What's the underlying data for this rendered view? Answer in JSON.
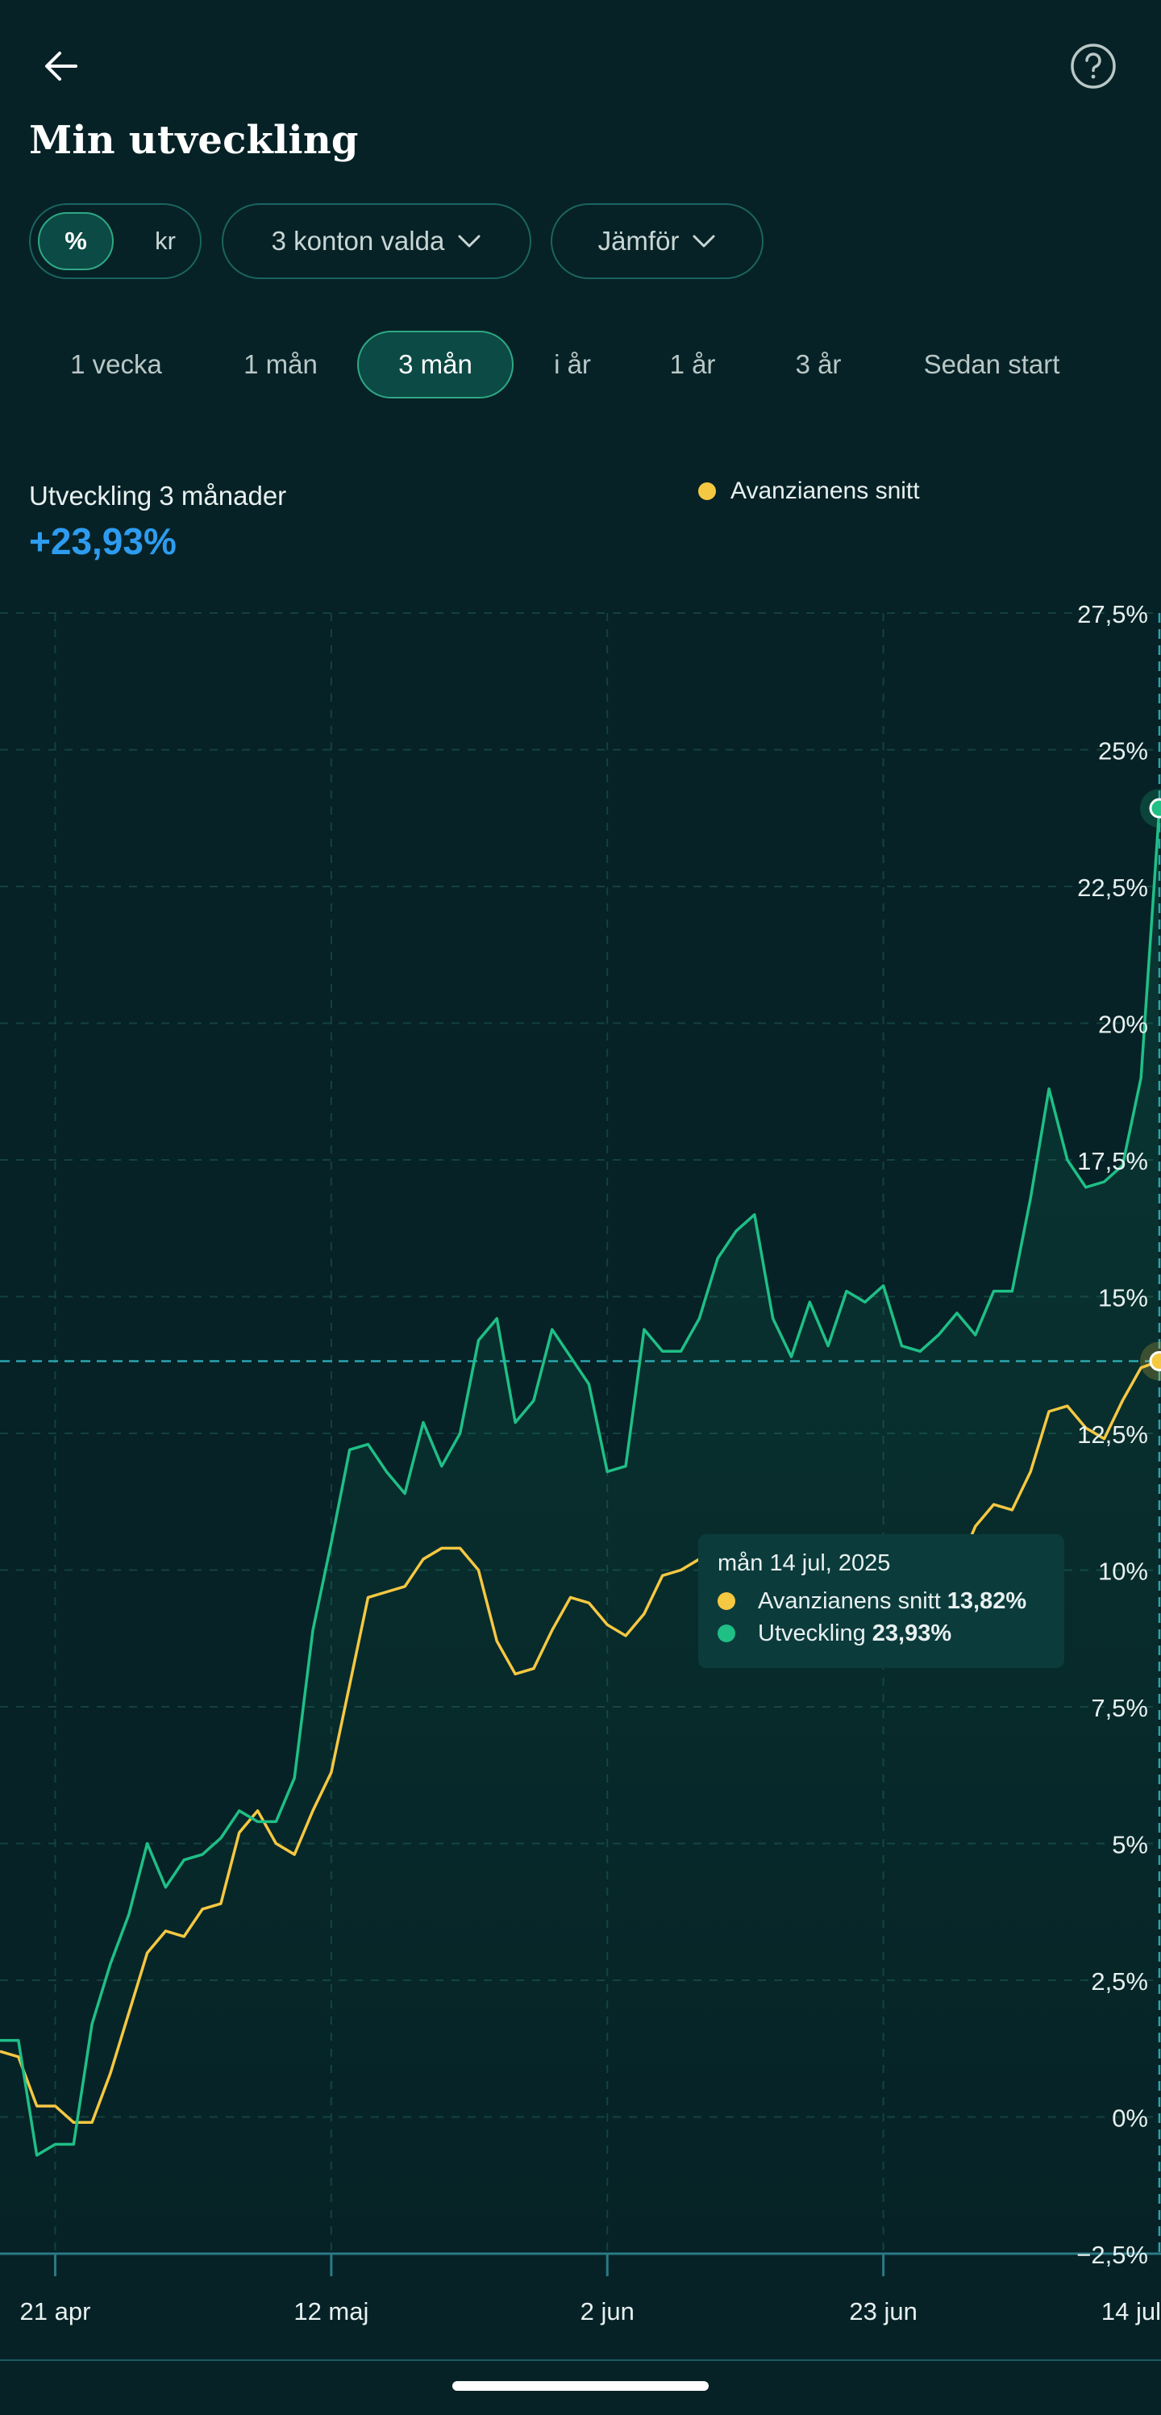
{
  "header": {
    "back_icon": "arrow-left-icon",
    "help_icon": "question-circle-icon",
    "title": "Min utveckling"
  },
  "filters": {
    "unit_percent": "%",
    "unit_kr": "kr",
    "unit_selected": "%",
    "accounts_label": "3 konton valda",
    "compare_label": "Jämför"
  },
  "range_tabs": [
    "1 vecka",
    "1 mån",
    "3 mån",
    "i år",
    "1 år",
    "3 år",
    "Sedan start"
  ],
  "range_selected": "3 mån",
  "summary": {
    "label": "Utveckling 3 månader",
    "value": "+23,93%"
  },
  "legend": {
    "comparison_label": "Avanzianens snitt"
  },
  "tooltip": {
    "date": "mån 14 jul, 2025",
    "rows": [
      {
        "label": "Avanzianens snitt",
        "value": "13,82%"
      },
      {
        "label": "Utveckling",
        "value": "23,93%"
      }
    ]
  },
  "colors": {
    "background": "#062226",
    "utveckling": "#1fbf86",
    "avanzianens_snitt": "#f5c842",
    "accent_value": "#2d9cf0"
  },
  "chart_data": {
    "type": "line",
    "ylim": [
      -2.5,
      27.5
    ],
    "y_ticks": [
      27.5,
      25,
      22.5,
      20,
      17.5,
      15,
      12.5,
      10,
      7.5,
      5,
      2.5,
      0,
      -2.5
    ],
    "y_tick_labels": [
      "27,5%",
      "25%",
      "22,5%",
      "20%",
      "17,5%",
      "15%",
      "12,5%",
      "10%",
      "7,5%",
      "5%",
      "2,5%",
      "0%",
      "−2,5%"
    ],
    "x_tick_labels": [
      "21 apr",
      "12 maj",
      "2 jun",
      "23 jun",
      "14 jul"
    ],
    "x_ticks_index": [
      3,
      18,
      33,
      48,
      63
    ],
    "x_count": 64,
    "grid": true,
    "crosshair_value": 13.82,
    "series": [
      {
        "name": "Utveckling",
        "color": "#1fbf86",
        "values": [
          1.4,
          1.4,
          -0.7,
          -0.5,
          -0.5,
          1.7,
          2.8,
          3.7,
          5.0,
          4.2,
          4.7,
          4.8,
          5.1,
          5.6,
          5.4,
          5.4,
          6.2,
          8.9,
          10.5,
          12.2,
          12.3,
          11.8,
          11.4,
          12.7,
          11.9,
          12.5,
          14.2,
          14.6,
          12.7,
          13.1,
          14.4,
          13.9,
          13.4,
          11.8,
          11.9,
          14.4,
          14.0,
          14.0,
          14.6,
          15.7,
          16.2,
          16.5,
          14.6,
          13.9,
          14.9,
          14.1,
          15.1,
          14.9,
          15.2,
          14.1,
          14.0,
          14.3,
          14.7,
          14.3,
          15.1,
          15.1,
          16.8,
          18.8,
          17.5,
          17.0,
          17.1,
          17.4,
          19.0,
          23.93
        ]
      },
      {
        "name": "Avanzianens snitt",
        "color": "#f5c842",
        "values": [
          1.2,
          1.1,
          0.2,
          0.2,
          -0.1,
          -0.1,
          0.8,
          1.9,
          3.0,
          3.4,
          3.3,
          3.8,
          3.9,
          5.2,
          5.6,
          5.0,
          4.8,
          5.6,
          6.3,
          7.9,
          9.5,
          9.6,
          9.7,
          10.2,
          10.4,
          10.4,
          10.0,
          8.7,
          8.1,
          8.2,
          8.9,
          9.5,
          9.4,
          9.0,
          8.8,
          9.2,
          9.9,
          10.0,
          10.2,
          10.4,
          10.4,
          10.6,
          10.6,
          9.8,
          9.2,
          9.1,
          9.3,
          9.0,
          9.1,
          9.4,
          9.6,
          9.8,
          10.0,
          10.8,
          11.2,
          11.1,
          11.8,
          12.9,
          13.0,
          12.6,
          12.4,
          13.1,
          13.7,
          13.82
        ]
      }
    ]
  }
}
